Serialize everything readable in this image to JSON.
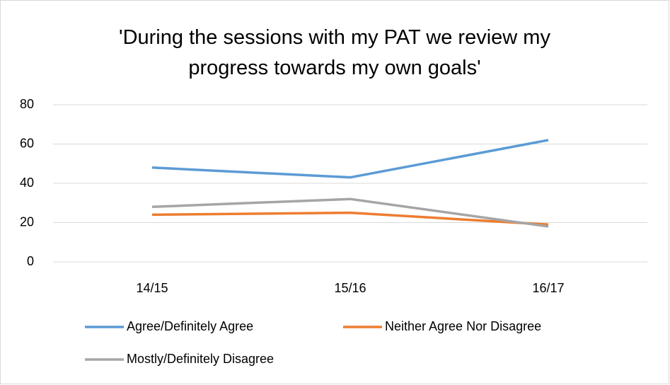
{
  "chart_data": {
    "type": "line",
    "title": "'During the sessions with my PAT we review my progress towards my own goals'",
    "categories": [
      "14/15",
      "15/16",
      "16/17"
    ],
    "series": [
      {
        "name": "Agree/Definitely Agree",
        "color": "#5b9bd5",
        "values": [
          48,
          43,
          62
        ]
      },
      {
        "name": "Neither Agree Nor Disagree",
        "color": "#ed7d31",
        "values": [
          24,
          25,
          19
        ]
      },
      {
        "name": "Mostly/Definitely Disagree",
        "color": "#a5a5a5",
        "values": [
          28,
          32,
          18
        ]
      }
    ],
    "ylim": [
      0,
      80
    ],
    "yticks": [
      0,
      20,
      40,
      60,
      80
    ],
    "grid": true,
    "legend": "bottom"
  }
}
